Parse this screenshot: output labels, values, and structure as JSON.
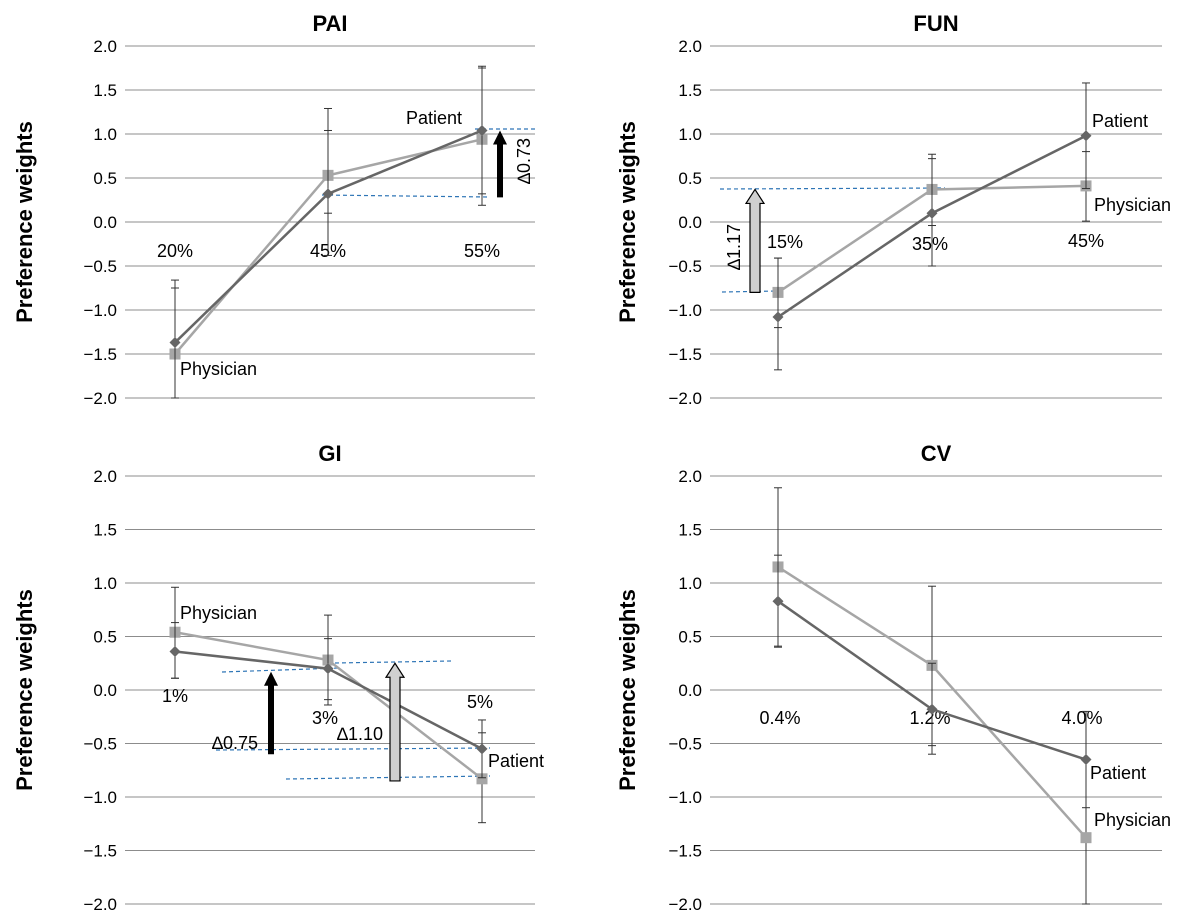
{
  "colors": {
    "patient": "#666666",
    "physician": "#a6a6a6",
    "grid": "#8c8c8c",
    "guide": "#2e75b6",
    "arrow_dark": "#000000",
    "arrow_light": "#d0d0d0"
  },
  "chart_data": [
    {
      "type": "line",
      "title": "PAI",
      "ylabel": "Preference weights",
      "ylim": [
        -2.0,
        2.0
      ],
      "yticks": [
        "2.0",
        "1.5",
        "1.0",
        "0.5",
        "0.0",
        "−0.5",
        "−1.0",
        "−1.5",
        "−2.0"
      ],
      "categories": [
        "20%",
        "45%",
        "55%"
      ],
      "series": [
        {
          "name": "Patient",
          "marker": "diamond",
          "values": [
            -1.37,
            0.32,
            1.04
          ],
          "err_low": [
            -2.0,
            -0.38,
            0.32
          ],
          "err_high": [
            -0.75,
            1.04,
            1.77
          ]
        },
        {
          "name": "Physician",
          "marker": "square",
          "values": [
            -1.5,
            0.53,
            0.94
          ],
          "err_low": [
            -2.0,
            0.1,
            0.19
          ],
          "err_high": [
            -0.66,
            1.29,
            1.75
          ]
        }
      ],
      "annotations": [
        {
          "text": "∆0.73",
          "from": 0.28,
          "to": 1.04,
          "style": "dark"
        }
      ]
    },
    {
      "type": "line",
      "title": "FUN",
      "ylabel": "Preference weights",
      "ylim": [
        -2.0,
        2.0
      ],
      "yticks": [
        "2.0",
        "1.5",
        "1.0",
        "0.5",
        "0.0",
        "−0.5",
        "−1.0",
        "−1.5",
        "−2.0"
      ],
      "categories": [
        "15%",
        "35%",
        "45%"
      ],
      "series": [
        {
          "name": "Patient",
          "marker": "diamond",
          "values": [
            -1.08,
            0.1,
            0.98
          ],
          "err_low": [
            -1.68,
            -0.5,
            0.38
          ],
          "err_high": [
            -0.41,
            0.72,
            1.58
          ]
        },
        {
          "name": "Physician",
          "marker": "square",
          "values": [
            -0.8,
            0.37,
            0.41
          ],
          "err_low": [
            -1.2,
            -0.04,
            0.01
          ],
          "err_high": [
            -0.41,
            0.77,
            0.8
          ]
        }
      ],
      "annotations": [
        {
          "text": "∆1.17",
          "from": -0.8,
          "to": 0.37,
          "style": "light"
        }
      ]
    },
    {
      "type": "line",
      "title": "GI",
      "ylabel": "Preference weights",
      "ylim": [
        -2.0,
        2.0
      ],
      "yticks": [
        "2.0",
        "1.5",
        "1.0",
        "0.5",
        "0.0",
        "−0.5",
        "−1.0",
        "−1.5",
        "−2.0"
      ],
      "categories": [
        "1%",
        "3%",
        "5%"
      ],
      "series": [
        {
          "name": "Patient",
          "marker": "diamond",
          "values": [
            0.36,
            0.2,
            -0.55
          ],
          "err_low": [
            0.11,
            -0.09,
            -0.82
          ],
          "err_high": [
            0.63,
            0.48,
            -0.28
          ]
        },
        {
          "name": "Physician",
          "marker": "square",
          "values": [
            0.54,
            0.28,
            -0.83
          ],
          "err_low": [
            0.11,
            -0.14,
            -1.24
          ],
          "err_high": [
            0.96,
            0.7,
            -0.4
          ]
        }
      ],
      "annotations": [
        {
          "text": "∆0.75",
          "from": -0.6,
          "to": 0.17,
          "style": "dark"
        },
        {
          "text": "∆1.10",
          "from": -0.85,
          "to": 0.25,
          "style": "light"
        }
      ]
    },
    {
      "type": "line",
      "title": "CV",
      "ylabel": "Preference weights",
      "ylim": [
        -2.0,
        2.0
      ],
      "yticks": [
        "2.0",
        "1.5",
        "1.0",
        "0.5",
        "0.0",
        "−0.5",
        "−1.0",
        "−1.5",
        "−2.0"
      ],
      "categories": [
        "0.4%",
        "1.2%",
        "4.0%"
      ],
      "series": [
        {
          "name": "Patient",
          "marker": "diamond",
          "values": [
            0.83,
            -0.18,
            -0.65
          ],
          "err_low": [
            0.4,
            -0.6,
            -1.1
          ],
          "err_high": [
            1.26,
            0.25,
            -0.2
          ]
        },
        {
          "name": "Physician",
          "marker": "square",
          "values": [
            1.15,
            0.23,
            -1.38
          ],
          "err_low": [
            0.41,
            -0.52,
            -2.0
          ],
          "err_high": [
            1.89,
            0.97,
            -0.64
          ]
        }
      ],
      "annotations": []
    }
  ]
}
